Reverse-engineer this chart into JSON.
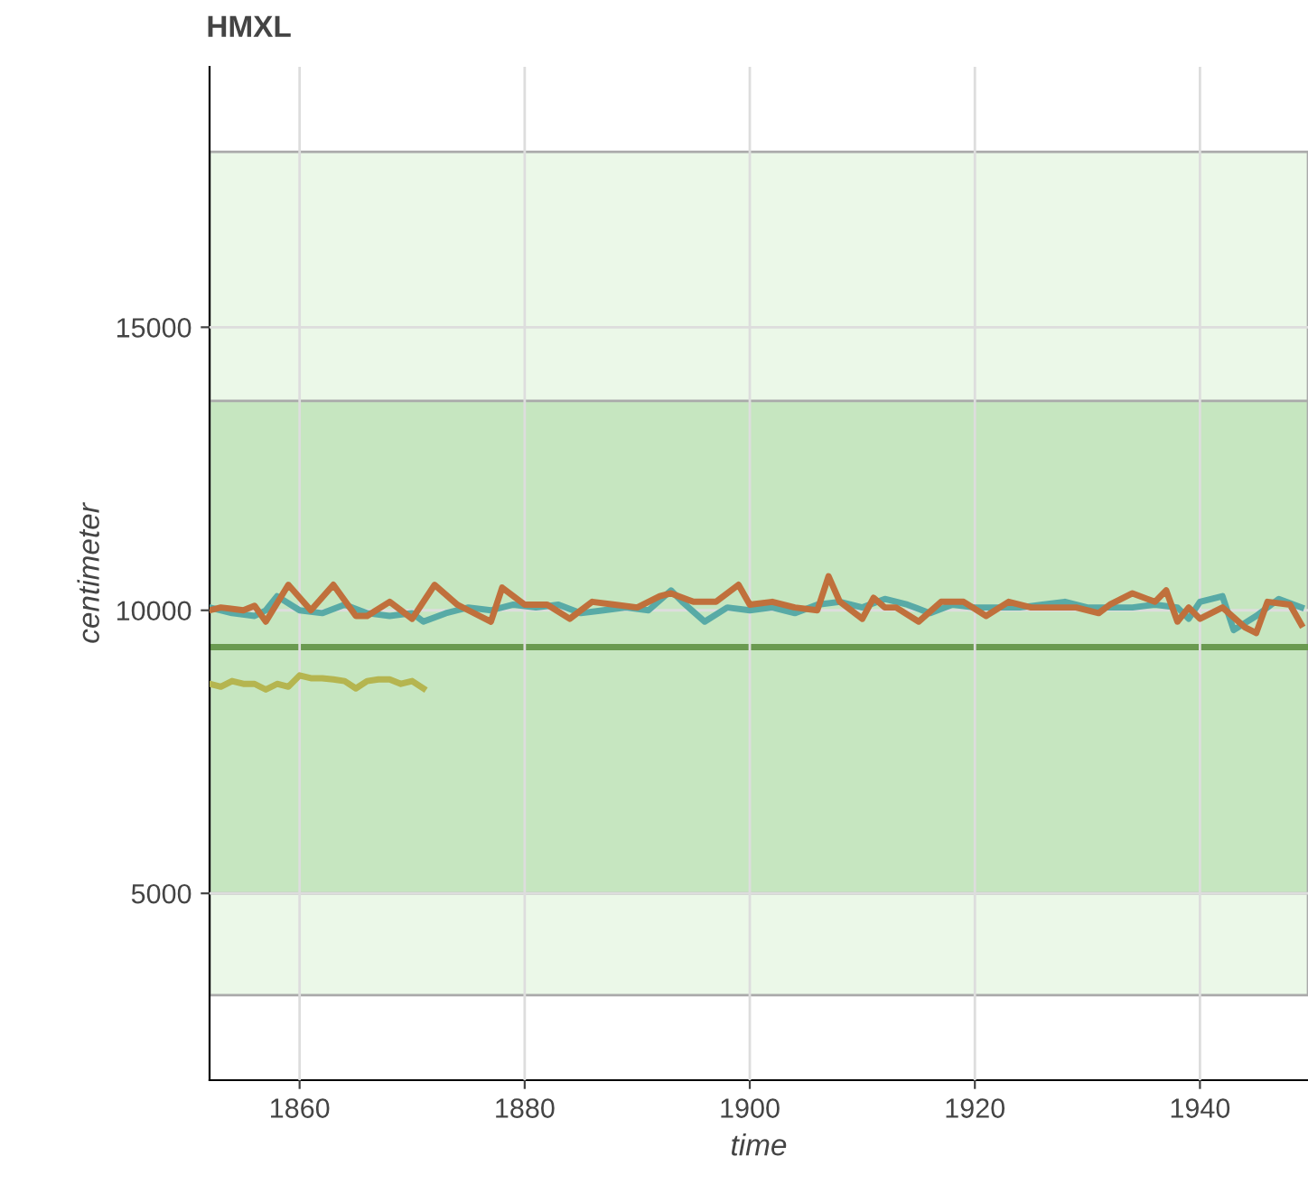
{
  "chart_data": {
    "type": "line",
    "title": "HMXL",
    "xlabel": "time",
    "ylabel": "centimeter",
    "xlim": [
      1852,
      1949.6
    ],
    "ylim": [
      1700,
      19600
    ],
    "xticks": [
      1860,
      1880,
      1900,
      1920,
      1940
    ],
    "yticks": [
      5000,
      10000,
      15000
    ],
    "grid": true,
    "bands": [
      {
        "axis": "y",
        "from": 3200,
        "to": 18100,
        "color": "#ebf8e8"
      },
      {
        "axis": "y",
        "from": 5000,
        "to": 13700,
        "color": "#c6e6c0"
      }
    ],
    "ref_lines": [
      {
        "axis": "y",
        "value": 9350,
        "color": "#6a9a50"
      }
    ],
    "series": [
      {
        "color": "#58aaa6",
        "x": [
          1852,
          1854,
          1856,
          1857,
          1858,
          1860,
          1862,
          1864,
          1866,
          1868,
          1870,
          1871,
          1873,
          1875,
          1877,
          1879,
          1881,
          1883,
          1885,
          1887,
          1889,
          1891,
          1893,
          1894,
          1896,
          1898,
          1900,
          1902,
          1904,
          1906,
          1908,
          1910,
          1912,
          1914,
          1916,
          1918,
          1920,
          1922,
          1924,
          1926,
          1928,
          1930,
          1932,
          1934,
          1936,
          1938,
          1939,
          1940,
          1942,
          1943,
          1945,
          1947,
          1949
        ],
        "values": [
          10050,
          9950,
          9900,
          10000,
          10250,
          10000,
          9950,
          10100,
          9950,
          9900,
          9950,
          9800,
          9950,
          10050,
          10000,
          10100,
          10050,
          10100,
          9950,
          10000,
          10050,
          10000,
          10350,
          10150,
          9800,
          10050,
          10000,
          10050,
          9950,
          10100,
          10150,
          10050,
          10200,
          10100,
          9950,
          10100,
          10050,
          10050,
          10050,
          10100,
          10150,
          10050,
          10050,
          10050,
          10100,
          10050,
          9850,
          10150,
          10250,
          9650,
          9900,
          10200,
          10050
        ]
      },
      {
        "color": "#c0703c",
        "x": [
          1852,
          1853,
          1855,
          1856,
          1857,
          1859,
          1861,
          1863,
          1865,
          1866,
          1868,
          1870,
          1872,
          1874,
          1875,
          1877,
          1878,
          1880,
          1882,
          1884,
          1886,
          1888,
          1890,
          1892,
          1893,
          1895,
          1897,
          1899,
          1900,
          1902,
          1904,
          1906,
          1907,
          1908,
          1910,
          1911,
          1912,
          1913,
          1915,
          1917,
          1919,
          1921,
          1923,
          1925,
          1927,
          1929,
          1931,
          1932,
          1934,
          1936,
          1937,
          1938,
          1939,
          1940,
          1942,
          1944,
          1945,
          1946,
          1948,
          1949
        ],
        "values": [
          10000,
          10050,
          10000,
          10080,
          9800,
          10450,
          10000,
          10450,
          9900,
          9900,
          10150,
          9850,
          10450,
          10100,
          10000,
          9800,
          10400,
          10100,
          10100,
          9850,
          10150,
          10100,
          10050,
          10250,
          10300,
          10150,
          10150,
          10450,
          10100,
          10150,
          10050,
          10000,
          10600,
          10150,
          9850,
          10220,
          10050,
          10050,
          9800,
          10150,
          10150,
          9900,
          10150,
          10050,
          10050,
          10050,
          9950,
          10100,
          10300,
          10150,
          10350,
          9800,
          10050,
          9850,
          10050,
          9700,
          9600,
          10150,
          10100,
          9750
        ]
      },
      {
        "color": "#b5b550",
        "x": [
          1852,
          1853,
          1854,
          1855,
          1856,
          1857,
          1858,
          1859,
          1860,
          1861,
          1862,
          1863,
          1864,
          1865,
          1866,
          1867,
          1868,
          1869,
          1870,
          1871
        ],
        "values": [
          8700,
          8650,
          8750,
          8700,
          8700,
          8600,
          8700,
          8650,
          8850,
          8800,
          8800,
          8780,
          8750,
          8620,
          8750,
          8780,
          8780,
          8700,
          8750,
          8620
        ]
      }
    ]
  }
}
